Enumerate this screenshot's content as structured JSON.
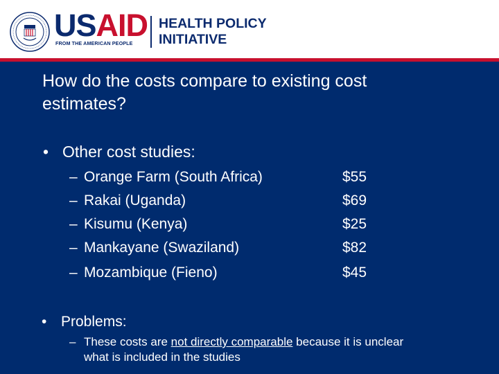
{
  "header": {
    "logo_word_blue": "US",
    "logo_word_red": "AID",
    "tagline": "FROM THE AMERICAN PEOPLE",
    "program_line1": "HEALTH POLICY",
    "program_line2": "INITIATIVE"
  },
  "slide": {
    "title_line1": "How do the costs compare to existing cost",
    "title_line2": "estimates?",
    "bullet_symbol": "•",
    "sub_bullet_symbol": "–",
    "bullet1": "Other cost studies:",
    "studies": [
      {
        "place": "Orange Farm (South Africa)",
        "cost": "$55"
      },
      {
        "place": "Rakai (Uganda)",
        "cost": "$69"
      },
      {
        "place": "Kisumu (Kenya)",
        "cost": "$25"
      },
      {
        "place": "Mankayane (Swaziland)",
        "cost": "$82"
      },
      {
        "place": "Mozambique (Fieno)",
        "cost": "$45"
      }
    ],
    "bullet2": "Problems:",
    "problem_part1": "These costs are ",
    "problem_underlined": "not directly comparable",
    "problem_part2": " because it is unclear what is included in the studies"
  },
  "colors": {
    "navy": "#002b6e",
    "logo_blue": "#0b2a6e",
    "accent_red": "#c8102e"
  }
}
